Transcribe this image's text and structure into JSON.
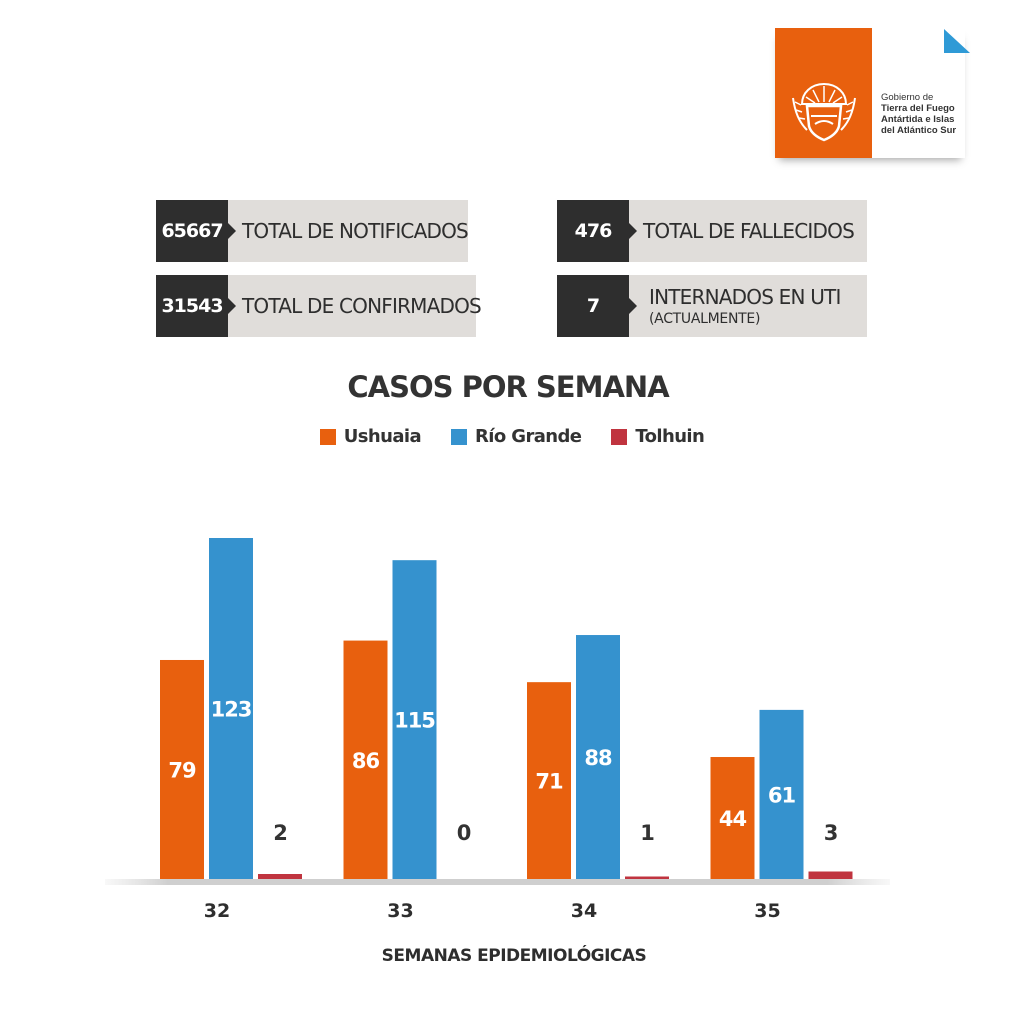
{
  "logo": {
    "line1": "Gobierno de",
    "line2": "Tierra del Fuego",
    "line3": "Antártida e Islas",
    "line4": "del Atlántico Sur"
  },
  "stats": {
    "notificados": {
      "value": "65667",
      "label": "TOTAL DE NOTIFICADOS"
    },
    "confirmados": {
      "value": "31543",
      "label": "TOTAL DE CONFIRMADOS"
    },
    "fallecidos": {
      "value": "476",
      "label": "TOTAL DE FALLECIDOS"
    },
    "uti": {
      "value": "7",
      "label": "INTERNADOS EN UTI",
      "sub": "(ACTUALMENTE)"
    }
  },
  "colors": {
    "ushuaia": "#e8600e",
    "rio_grande": "#3592ce",
    "tolhuin": "#c0343f",
    "dark": "#2e2e2e",
    "panel": "#e0ddda"
  },
  "chart_data": {
    "type": "bar",
    "title": "CASOS POR SEMANA",
    "xlabel": "SEMANAS EPIDEMIOLÓGICAS",
    "ylabel": "",
    "categories": [
      "32",
      "33",
      "34",
      "35"
    ],
    "series": [
      {
        "name": "Ushuaia",
        "values": [
          79,
          86,
          71,
          44
        ]
      },
      {
        "name": "Río Grande",
        "values": [
          123,
          115,
          88,
          61
        ]
      },
      {
        "name": "Tolhuin",
        "values": [
          2,
          0,
          1,
          3
        ]
      }
    ],
    "ylim": [
      0,
      123
    ],
    "legend": "top-center"
  }
}
